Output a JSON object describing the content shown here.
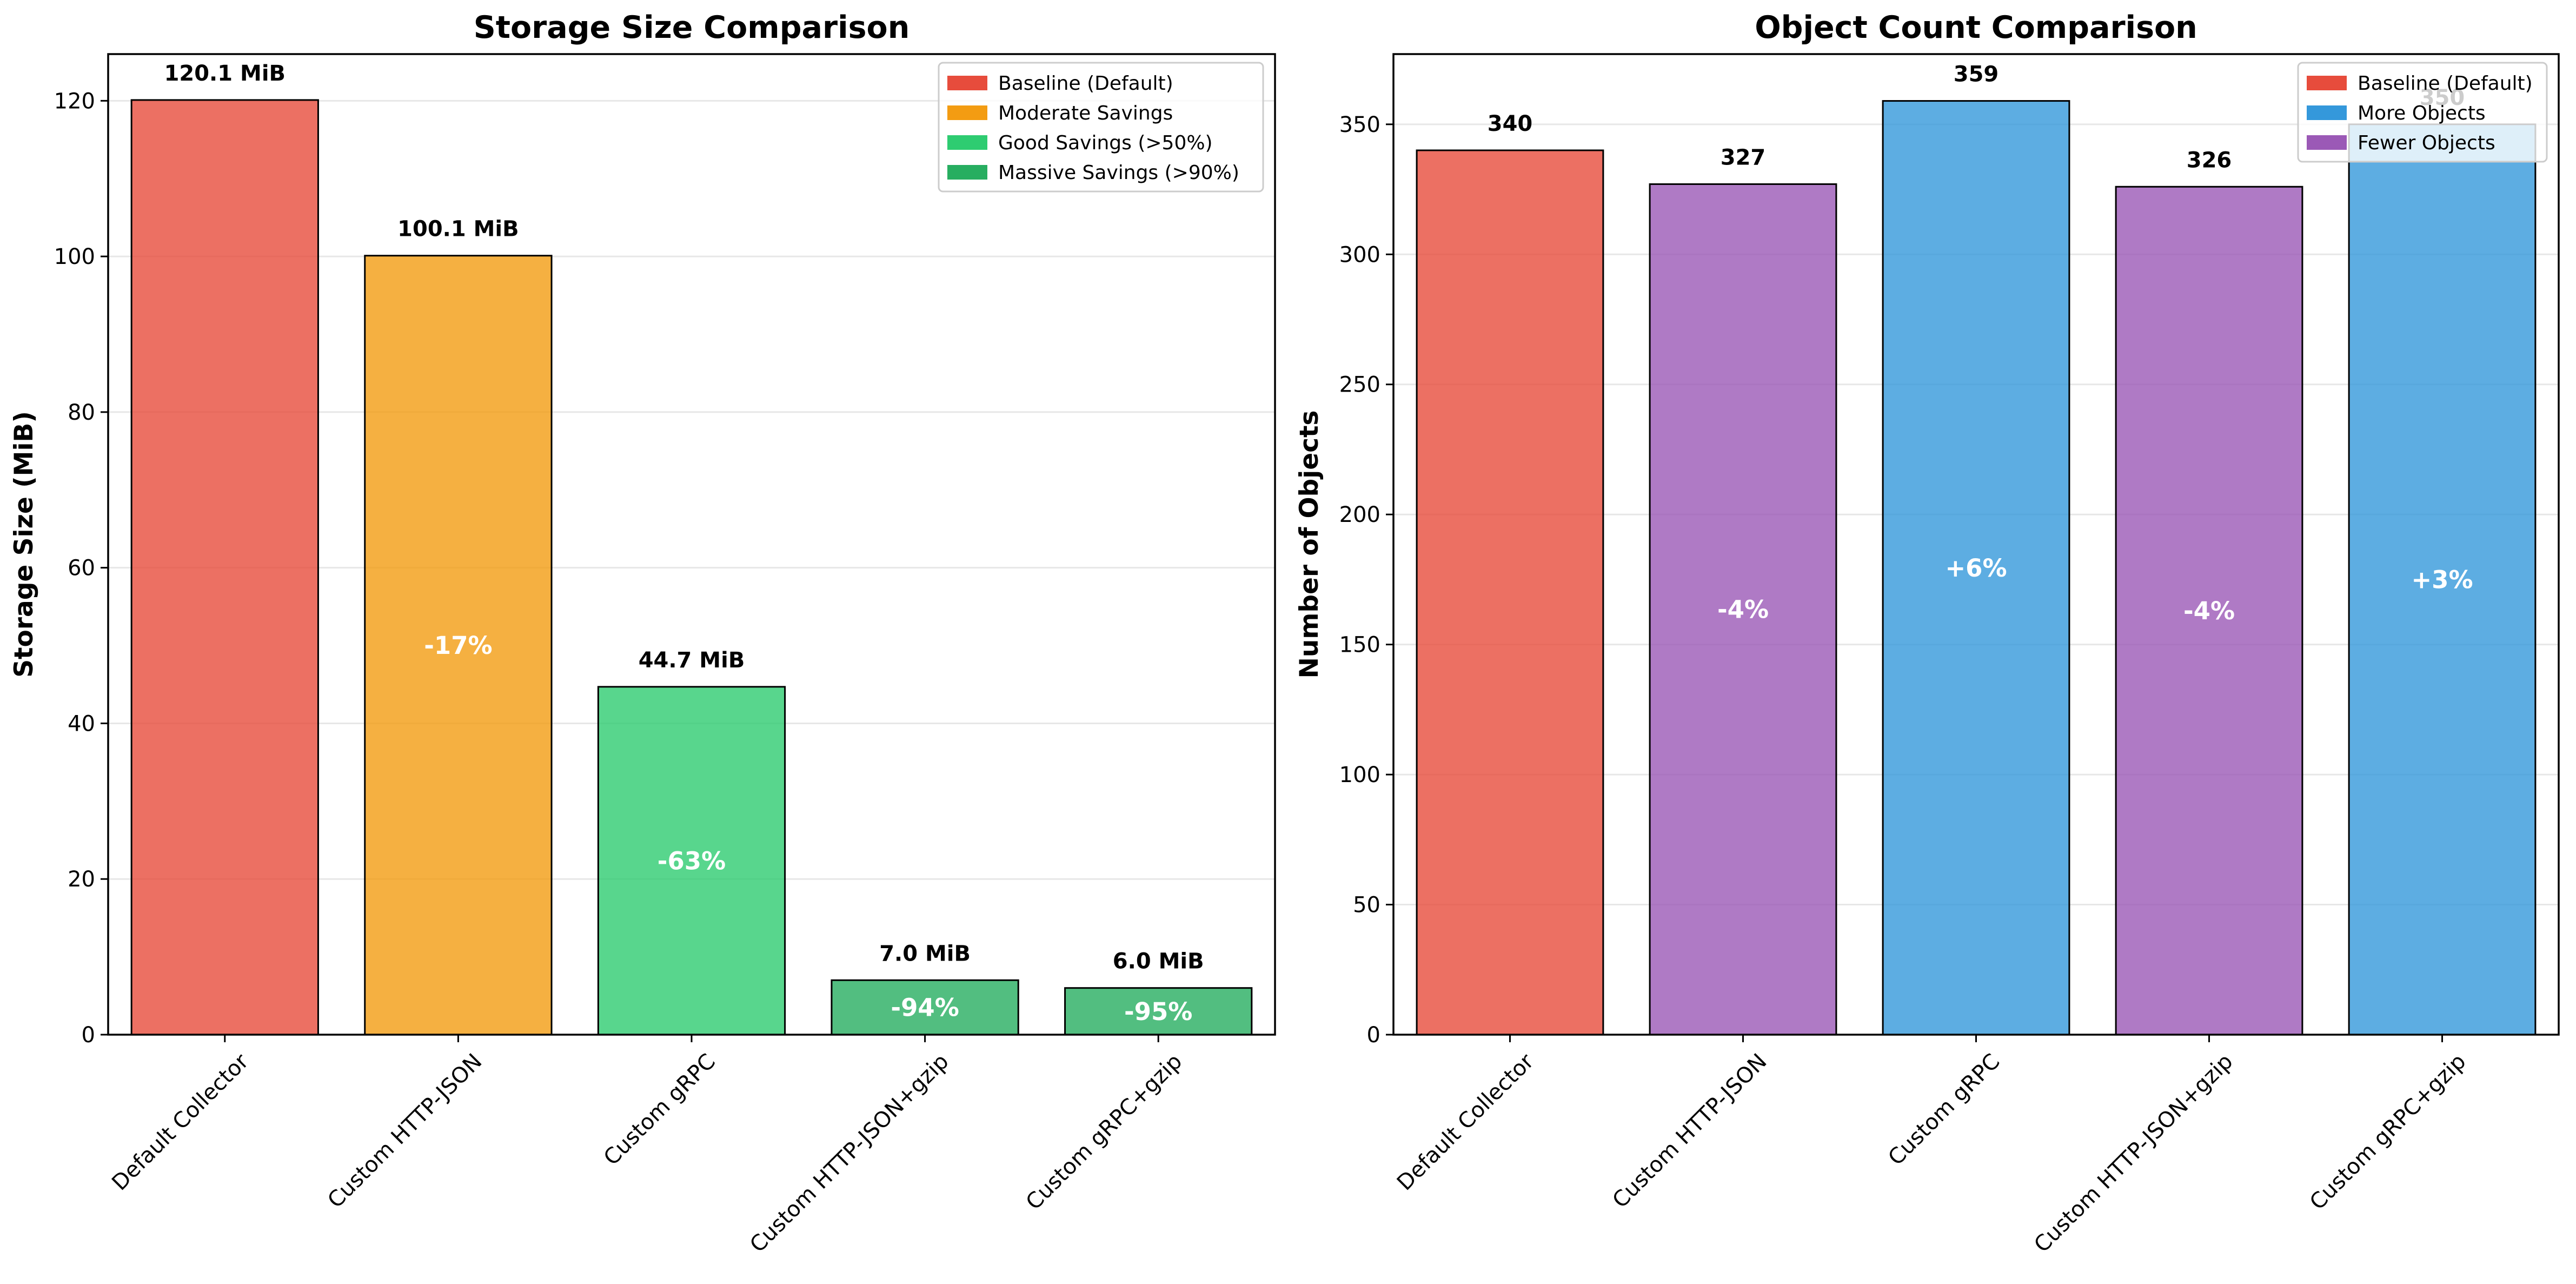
{
  "chart_data": [
    {
      "type": "bar",
      "title": "Storage Size Comparison",
      "xlabel": "",
      "ylabel": "Storage Size (MiB)",
      "ylim": [
        0,
        126
      ],
      "yticks": [
        0,
        20,
        40,
        60,
        80,
        100,
        120
      ],
      "categories": [
        "Default Collector",
        "Custom HTTP-JSON",
        "Custom gRPC",
        "Custom HTTP-JSON+gzip",
        "Custom gRPC+gzip"
      ],
      "values": [
        120.1,
        100.1,
        44.7,
        7.0,
        6.0
      ],
      "value_labels": [
        "120.1 MiB",
        "100.1 MiB",
        "44.7 MiB",
        "7.0 MiB",
        "6.0 MiB"
      ],
      "inner_labels": [
        "",
        "-17%",
        "-63%",
        "-94%",
        "-95%"
      ],
      "bar_colors": [
        "#e74c3c",
        "#f39c12",
        "#2ecc71",
        "#27ae60",
        "#27ae60"
      ],
      "grid": true,
      "legend_position": "top-right",
      "legend": [
        {
          "label": "Baseline (Default)",
          "color": "#e74c3c"
        },
        {
          "label": "Moderate Savings",
          "color": "#f39c12"
        },
        {
          "label": "Good Savings (>50%)",
          "color": "#2ecc71"
        },
        {
          "label": "Massive Savings (>90%)",
          "color": "#27ae60"
        }
      ]
    },
    {
      "type": "bar",
      "title": "Object Count Comparison",
      "xlabel": "",
      "ylabel": "Number of Objects",
      "ylim": [
        0,
        377
      ],
      "yticks": [
        0,
        50,
        100,
        150,
        200,
        250,
        300,
        350
      ],
      "categories": [
        "Default Collector",
        "Custom HTTP-JSON",
        "Custom gRPC",
        "Custom HTTP-JSON+gzip",
        "Custom gRPC+gzip"
      ],
      "values": [
        340,
        327,
        359,
        326,
        350
      ],
      "value_labels": [
        "340",
        "327",
        "359",
        "326",
        "350"
      ],
      "inner_labels": [
        "",
        "-4%",
        "+6%",
        "-4%",
        "+3%"
      ],
      "bar_colors": [
        "#e74c3c",
        "#9b59b6",
        "#3498db",
        "#9b59b6",
        "#3498db"
      ],
      "grid": true,
      "legend_position": "top-right",
      "legend": [
        {
          "label": "Baseline (Default)",
          "color": "#e74c3c"
        },
        {
          "label": "More Objects",
          "color": "#3498db"
        },
        {
          "label": "Fewer Objects",
          "color": "#9b59b6"
        }
      ]
    }
  ]
}
